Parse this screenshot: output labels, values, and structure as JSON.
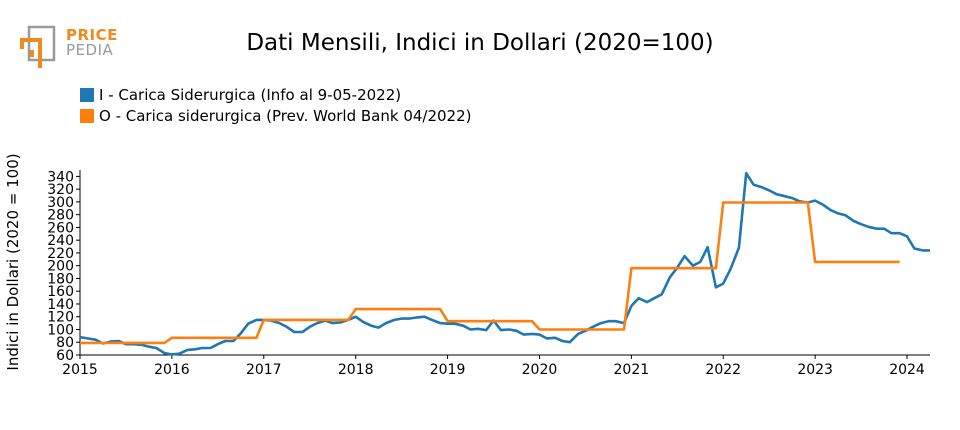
{
  "logo": {
    "line1": "PRICE",
    "line2": "PEDIA",
    "accent": "#f0891e",
    "grey": "#9a9a9a"
  },
  "chart_data": {
    "type": "line",
    "title": "Dati Mensili, Indici in Dollari (2020=100)",
    "ylabel": "Indici in Dollari (2020 = 100)",
    "xlabel": "",
    "xlim": [
      2015,
      2024.25
    ],
    "ylim": [
      60,
      350
    ],
    "xticks": [
      "2015",
      "2016",
      "2017",
      "2018",
      "2019",
      "2020",
      "2021",
      "2022",
      "2023",
      "2024"
    ],
    "yticks": [
      60,
      80,
      100,
      120,
      140,
      160,
      180,
      200,
      220,
      240,
      260,
      280,
      300,
      320,
      340
    ],
    "legend_position": "top-left",
    "grid": false,
    "series": [
      {
        "name": "I - Carica Siderurgica (Info al 9-05-2022)",
        "color": "#1f77b4",
        "step": false,
        "points": [
          [
            2015.0,
            88
          ],
          [
            2015.08,
            86
          ],
          [
            2015.17,
            84
          ],
          [
            2015.25,
            78
          ],
          [
            2015.33,
            81
          ],
          [
            2015.42,
            82
          ],
          [
            2015.5,
            77
          ],
          [
            2015.58,
            77
          ],
          [
            2015.67,
            76
          ],
          [
            2015.75,
            73
          ],
          [
            2015.83,
            71
          ],
          [
            2015.92,
            63
          ],
          [
            2016.0,
            61
          ],
          [
            2016.08,
            62
          ],
          [
            2016.17,
            68
          ],
          [
            2016.25,
            69
          ],
          [
            2016.33,
            71
          ],
          [
            2016.42,
            71
          ],
          [
            2016.5,
            77
          ],
          [
            2016.58,
            82
          ],
          [
            2016.67,
            82
          ],
          [
            2016.75,
            94
          ],
          [
            2016.83,
            109
          ],
          [
            2016.92,
            115
          ],
          [
            2017.0,
            115
          ],
          [
            2017.08,
            114
          ],
          [
            2017.17,
            110
          ],
          [
            2017.25,
            104
          ],
          [
            2017.33,
            96
          ],
          [
            2017.42,
            96
          ],
          [
            2017.5,
            104
          ],
          [
            2017.58,
            110
          ],
          [
            2017.67,
            114
          ],
          [
            2017.75,
            110
          ],
          [
            2017.83,
            111
          ],
          [
            2017.92,
            115
          ],
          [
            2018.0,
            120
          ],
          [
            2018.08,
            112
          ],
          [
            2018.17,
            106
          ],
          [
            2018.25,
            103
          ],
          [
            2018.33,
            110
          ],
          [
            2018.42,
            115
          ],
          [
            2018.5,
            117
          ],
          [
            2018.58,
            117
          ],
          [
            2018.67,
            119
          ],
          [
            2018.75,
            120
          ],
          [
            2018.83,
            115
          ],
          [
            2018.92,
            110
          ],
          [
            2019.0,
            109
          ],
          [
            2019.08,
            109
          ],
          [
            2019.17,
            106
          ],
          [
            2019.25,
            100
          ],
          [
            2019.33,
            101
          ],
          [
            2019.42,
            99
          ],
          [
            2019.5,
            114
          ],
          [
            2019.58,
            99
          ],
          [
            2019.67,
            100
          ],
          [
            2019.75,
            98
          ],
          [
            2019.83,
            92
          ],
          [
            2019.92,
            93
          ],
          [
            2020.0,
            92
          ],
          [
            2020.08,
            86
          ],
          [
            2020.17,
            87
          ],
          [
            2020.25,
            82
          ],
          [
            2020.33,
            80
          ],
          [
            2020.42,
            93
          ],
          [
            2020.5,
            98
          ],
          [
            2020.58,
            104
          ],
          [
            2020.67,
            110
          ],
          [
            2020.75,
            113
          ],
          [
            2020.83,
            113
          ],
          [
            2020.92,
            110
          ],
          [
            2021.0,
            137
          ],
          [
            2021.08,
            149
          ],
          [
            2021.17,
            143
          ],
          [
            2021.25,
            149
          ],
          [
            2021.33,
            155
          ],
          [
            2021.42,
            182
          ],
          [
            2021.5,
            197
          ],
          [
            2021.58,
            215
          ],
          [
            2021.67,
            200
          ],
          [
            2021.75,
            206
          ],
          [
            2021.83,
            229
          ],
          [
            2021.92,
            166
          ],
          [
            2022.0,
            172
          ],
          [
            2022.08,
            195
          ],
          [
            2022.17,
            228
          ],
          [
            2022.25,
            345
          ],
          [
            2022.33,
            327
          ],
          [
            2022.42,
            323
          ],
          [
            2022.5,
            318
          ],
          [
            2022.58,
            312
          ],
          [
            2022.67,
            309
          ],
          [
            2022.75,
            306
          ],
          [
            2022.83,
            301
          ],
          [
            2022.92,
            299
          ],
          [
            2023.0,
            302
          ],
          [
            2023.08,
            296
          ],
          [
            2023.17,
            287
          ],
          [
            2023.25,
            282
          ],
          [
            2023.33,
            279
          ],
          [
            2023.42,
            270
          ],
          [
            2023.5,
            265
          ],
          [
            2023.58,
            261
          ],
          [
            2023.67,
            258
          ],
          [
            2023.75,
            258
          ],
          [
            2023.83,
            251
          ],
          [
            2023.92,
            251
          ],
          [
            2024.0,
            246
          ],
          [
            2024.08,
            227
          ],
          [
            2024.17,
            224
          ],
          [
            2024.25,
            224
          ]
        ]
      },
      {
        "name": "O - Carica siderurgica (Prev. World Bank 04/2022)",
        "color": "#ff7f0e",
        "step": true,
        "points": [
          [
            2015.0,
            79
          ],
          [
            2016.0,
            87
          ],
          [
            2017.0,
            115
          ],
          [
            2018.0,
            132
          ],
          [
            2019.0,
            113
          ],
          [
            2020.0,
            100
          ],
          [
            2021.0,
            196
          ],
          [
            2022.0,
            299
          ],
          [
            2023.0,
            206
          ],
          [
            2023.92,
            206
          ]
        ],
        "steps_at": [
          2015.92,
          2016.92,
          2017.92,
          2018.92,
          2019.92,
          2020.92,
          2021.92,
          2022.92
        ]
      }
    ]
  }
}
